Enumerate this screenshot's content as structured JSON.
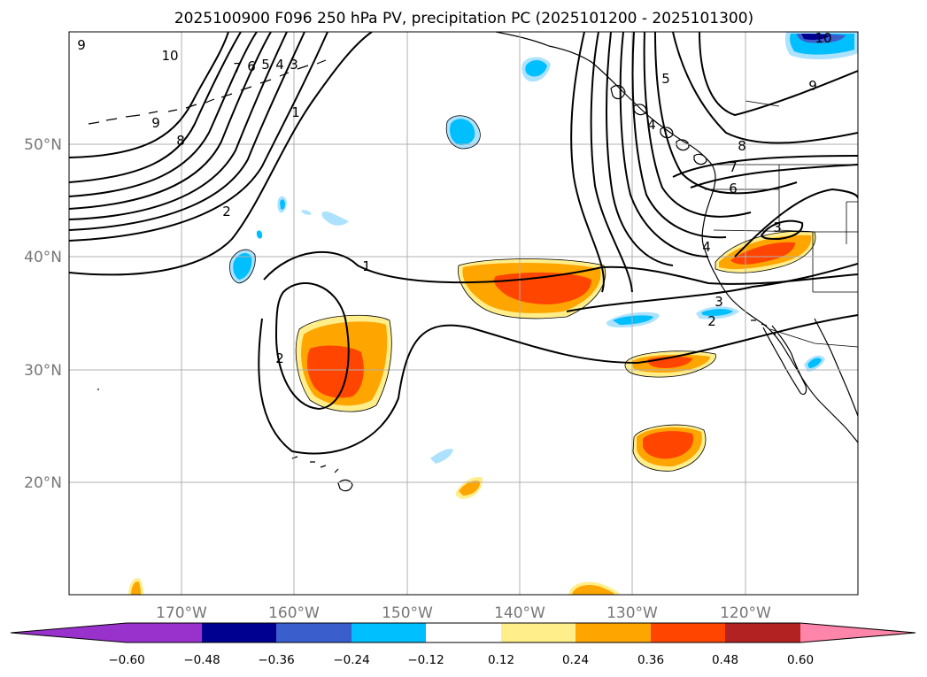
{
  "title": "2025100900 F096 250 hPa PV, precipitation PC (2025101200 - 2025101300)",
  "colors": {
    "neg_060": "#9932CC",
    "neg_048": "#000090",
    "neg_036": "#3A5FCD",
    "neg_024": "#00BFFF",
    "neg_012": "#ADE2FF",
    "zero": "#FFFFFF",
    "pos_012": "#FFEE8A",
    "pos_024": "#FFA500",
    "pos_036": "#FF4500",
    "pos_048": "#B22222",
    "pos_060": "#FF85AA"
  },
  "map": {
    "lon_labels": [
      "170°W",
      "160°W",
      "150°W",
      "140°W",
      "130°W",
      "120°W"
    ],
    "lat_labels": [
      "50°N",
      "40°N",
      "30°N",
      "20°N"
    ],
    "pv_contour_labels": [
      "9",
      "10",
      "9",
      "8",
      "7",
      "6",
      "5",
      "4",
      "3",
      "1",
      "2",
      "1",
      "2",
      "5",
      "4",
      "9",
      "8",
      "7",
      "6",
      "4",
      "3",
      "3",
      "2",
      "10"
    ]
  },
  "colorbar": {
    "ticks": [
      "−0.60",
      "−0.48",
      "−0.36",
      "−0.24",
      "−0.12",
      "0.12",
      "0.24",
      "0.36",
      "0.48",
      "0.60"
    ]
  }
}
